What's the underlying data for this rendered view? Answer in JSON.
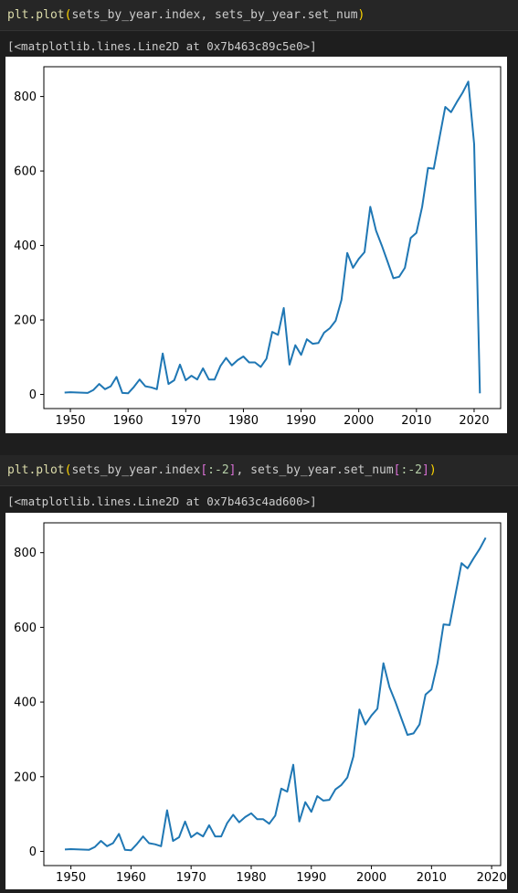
{
  "cells": [
    {
      "code_tokens": [
        {
          "t": "plt.plot",
          "c": "tok-fn"
        },
        {
          "t": "(",
          "c": "tok-paren1"
        },
        {
          "t": "sets_by_year.index, sets_by_year.set_num",
          "c": "tok-plain"
        },
        {
          "t": ")",
          "c": "tok-paren1"
        }
      ],
      "output_repr": "[<matplotlib.lines.Line2D at 0x7b463c89c5e0>]"
    },
    {
      "code_tokens": [
        {
          "t": "plt.plot",
          "c": "tok-fn"
        },
        {
          "t": "(",
          "c": "tok-paren1"
        },
        {
          "t": "sets_by_year.index",
          "c": "tok-plain"
        },
        {
          "t": "[",
          "c": "tok-bracket"
        },
        {
          "t": ":-2",
          "c": "tok-num"
        },
        {
          "t": "]",
          "c": "tok-bracket"
        },
        {
          "t": ", sets_by_year.set_num",
          "c": "tok-plain"
        },
        {
          "t": "[",
          "c": "tok-bracket"
        },
        {
          "t": ":-2",
          "c": "tok-num"
        },
        {
          "t": "]",
          "c": "tok-bracket"
        },
        {
          "t": ")",
          "c": "tok-paren1"
        }
      ],
      "output_repr": "[<matplotlib.lines.Line2D at 0x7b463c4ad600>]"
    }
  ],
  "chart_data": [
    {
      "type": "line",
      "xlim": [
        1945.4,
        2024.6
      ],
      "ylim": [
        -38,
        880
      ],
      "xticks": [
        1950,
        1960,
        1970,
        1980,
        1990,
        2000,
        2010,
        2020
      ],
      "yticks": [
        0,
        200,
        400,
        600,
        800
      ],
      "line_color": "#1f77b4",
      "grid": false,
      "series": [
        {
          "x": [
            1949,
            1950,
            1953,
            1954,
            1955,
            1956,
            1957,
            1958,
            1959,
            1960,
            1961,
            1962,
            1963,
            1964,
            1965,
            1966,
            1967,
            1968,
            1969,
            1970,
            1971,
            1972,
            1973,
            1974,
            1975,
            1976,
            1977,
            1978,
            1979,
            1980,
            1981,
            1982,
            1983,
            1984,
            1985,
            1986,
            1987,
            1988,
            1989,
            1990,
            1991,
            1992,
            1993,
            1994,
            1995,
            1996,
            1997,
            1998,
            1999,
            2000,
            2001,
            2002,
            2003,
            2004,
            2005,
            2006,
            2007,
            2008,
            2009,
            2010,
            2011,
            2012,
            2013,
            2014,
            2015,
            2016,
            2017,
            2018,
            2019,
            2020,
            2021
          ],
          "y": [
            5,
            6,
            4,
            12,
            28,
            14,
            22,
            47,
            4,
            3,
            20,
            40,
            22,
            19,
            14,
            110,
            28,
            38,
            80,
            38,
            50,
            40,
            70,
            40,
            40,
            76,
            98,
            78,
            92,
            102,
            86,
            86,
            74,
            96,
            168,
            160,
            232,
            80,
            132,
            106,
            148,
            136,
            138,
            166,
            178,
            198,
            254,
            380,
            340,
            364,
            382,
            504,
            440,
            400,
            356,
            312,
            316,
            340,
            420,
            434,
            504,
            608,
            606,
            690,
            772,
            758,
            785,
            810,
            840,
            672,
            3
          ]
        }
      ]
    },
    {
      "type": "line",
      "xlim": [
        1945.5,
        2021.5
      ],
      "ylim": [
        -38,
        880
      ],
      "xticks": [
        1950,
        1960,
        1970,
        1980,
        1990,
        2000,
        2010,
        2020
      ],
      "yticks": [
        0,
        200,
        400,
        600,
        800
      ],
      "line_color": "#1f77b4",
      "grid": false,
      "series": [
        {
          "x": [
            1949,
            1950,
            1953,
            1954,
            1955,
            1956,
            1957,
            1958,
            1959,
            1960,
            1961,
            1962,
            1963,
            1964,
            1965,
            1966,
            1967,
            1968,
            1969,
            1970,
            1971,
            1972,
            1973,
            1974,
            1975,
            1976,
            1977,
            1978,
            1979,
            1980,
            1981,
            1982,
            1983,
            1984,
            1985,
            1986,
            1987,
            1988,
            1989,
            1990,
            1991,
            1992,
            1993,
            1994,
            1995,
            1996,
            1997,
            1998,
            1999,
            2000,
            2001,
            2002,
            2003,
            2004,
            2005,
            2006,
            2007,
            2008,
            2009,
            2010,
            2011,
            2012,
            2013,
            2014,
            2015,
            2016,
            2017,
            2018,
            2019
          ],
          "y": [
            5,
            6,
            4,
            12,
            28,
            14,
            22,
            47,
            4,
            3,
            20,
            40,
            22,
            19,
            14,
            110,
            28,
            38,
            80,
            38,
            50,
            40,
            70,
            40,
            40,
            76,
            98,
            78,
            92,
            102,
            86,
            86,
            74,
            96,
            168,
            160,
            232,
            80,
            132,
            106,
            148,
            136,
            138,
            166,
            178,
            198,
            254,
            380,
            340,
            364,
            382,
            504,
            440,
            400,
            356,
            312,
            316,
            340,
            420,
            434,
            504,
            608,
            606,
            690,
            772,
            758,
            785,
            810,
            840
          ]
        }
      ]
    }
  ]
}
